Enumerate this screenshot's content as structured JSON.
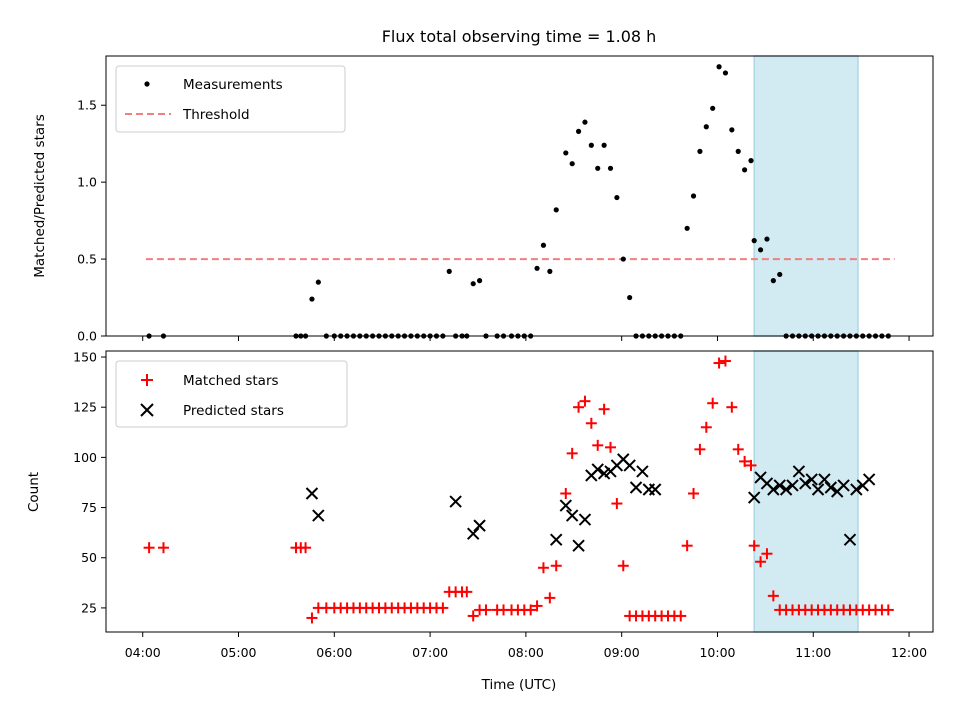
{
  "title": "Flux total observing time = 1.08 h",
  "colors": {
    "measurement": "#000000",
    "threshold": "#f08080",
    "matched": "#ff0000",
    "predicted": "#000000",
    "highlight": "#add8e6"
  },
  "chart_data": [
    {
      "type": "scatter",
      "ylabel": "Matched/Predicted stars",
      "ylim": [
        0,
        1.82
      ],
      "yticks": [
        0,
        0.5,
        1.0,
        1.5
      ],
      "ytick_labels": [
        "0.0",
        "0.5",
        "1.0",
        "1.5"
      ],
      "xlim": [
        "03:37",
        "12:15"
      ],
      "xticks": [
        "04:00",
        "05:00",
        "06:00",
        "07:00",
        "08:00",
        "09:00",
        "10:00",
        "11:00",
        "12:00"
      ],
      "highlight_span": [
        "10:23",
        "11:28"
      ],
      "legend": "top-left",
      "threshold": {
        "name": "Threshold",
        "y": 0.5,
        "x": [
          "04:02",
          "11:51"
        ],
        "style": "dashed"
      },
      "series": [
        {
          "name": "Measurements",
          "marker": "dot",
          "x": [
            "04:04",
            "04:13",
            "05:36",
            "05:39",
            "05:42",
            "05:46",
            "05:50",
            "05:55",
            "06:00",
            "06:04",
            "06:08",
            "06:12",
            "06:16",
            "06:20",
            "06:24",
            "06:28",
            "06:32",
            "06:36",
            "06:40",
            "06:44",
            "06:48",
            "06:52",
            "06:56",
            "07:00",
            "07:04",
            "07:08",
            "07:12",
            "07:16",
            "07:20",
            "07:23",
            "07:27",
            "07:31",
            "07:35",
            "07:42",
            "07:46",
            "07:51",
            "07:55",
            "07:59",
            "08:03",
            "08:07",
            "08:11",
            "08:15",
            "08:19",
            "08:25",
            "08:29",
            "08:33",
            "08:37",
            "08:41",
            "08:45",
            "08:49",
            "08:53",
            "08:57",
            "09:01",
            "09:05",
            "09:09",
            "09:13",
            "09:17",
            "09:21",
            "09:25",
            "09:29",
            "09:33",
            "09:37",
            "09:41",
            "09:45",
            "09:49",
            "09:53",
            "09:57",
            "10:01",
            "10:05",
            "10:09",
            "10:13",
            "10:17",
            "10:21",
            "10:23",
            "10:27",
            "10:31",
            "10:35",
            "10:39",
            "10:43",
            "10:47",
            "10:51",
            "10:55",
            "10:59",
            "11:03",
            "11:07",
            "11:11",
            "11:15",
            "11:19",
            "11:23",
            "11:27",
            "11:31",
            "11:35",
            "11:39",
            "11:43",
            "11:47"
          ],
          "y": [
            0,
            0,
            0,
            0,
            0,
            0.24,
            0.35,
            0,
            0,
            0,
            0,
            0,
            0,
            0,
            0,
            0,
            0,
            0,
            0,
            0,
            0,
            0,
            0,
            0,
            0,
            0,
            0.42,
            0,
            0,
            0,
            0.34,
            0.36,
            0,
            0,
            0,
            0,
            0,
            0,
            0,
            0.44,
            0.59,
            0.42,
            0.82,
            1.19,
            1.12,
            1.33,
            1.39,
            1.24,
            1.09,
            1.24,
            1.09,
            0.9,
            0.5,
            0.25,
            0,
            0,
            0,
            0,
            0,
            0,
            0,
            0,
            0.7,
            0.91,
            1.2,
            1.36,
            1.48,
            1.75,
            1.71,
            1.34,
            1.2,
            1.08,
            1.14,
            0.62,
            0.56,
            0.63,
            0.36,
            0.4,
            0,
            0,
            0,
            0,
            0,
            0,
            0,
            0,
            0,
            0,
            0,
            0,
            0,
            0,
            0,
            0,
            0
          ]
        }
      ]
    },
    {
      "type": "scatter",
      "ylabel": "Count",
      "xlabel": "Time (UTC)",
      "ylim": [
        13,
        153
      ],
      "yticks": [
        25,
        50,
        75,
        100,
        125,
        150
      ],
      "ytick_labels": [
        "25",
        "50",
        "75",
        "100",
        "125",
        "150"
      ],
      "xlim": [
        "03:37",
        "12:15"
      ],
      "xticks": [
        "04:00",
        "05:00",
        "06:00",
        "07:00",
        "08:00",
        "09:00",
        "10:00",
        "11:00",
        "12:00"
      ],
      "xtick_labels": [
        "04:00",
        "05:00",
        "06:00",
        "07:00",
        "08:00",
        "09:00",
        "10:00",
        "11:00",
        "12:00"
      ],
      "highlight_span": [
        "10:23",
        "11:28"
      ],
      "legend": "top-left",
      "series": [
        {
          "name": "Matched stars",
          "marker": "plus",
          "x": [
            "04:04",
            "04:13",
            "05:36",
            "05:39",
            "05:42",
            "05:46",
            "05:50",
            "05:55",
            "06:00",
            "06:04",
            "06:08",
            "06:12",
            "06:16",
            "06:20",
            "06:24",
            "06:28",
            "06:32",
            "06:36",
            "06:40",
            "06:44",
            "06:48",
            "06:52",
            "06:56",
            "07:00",
            "07:04",
            "07:08",
            "07:12",
            "07:16",
            "07:20",
            "07:23",
            "07:27",
            "07:31",
            "07:35",
            "07:42",
            "07:46",
            "07:51",
            "07:55",
            "07:59",
            "08:03",
            "08:07",
            "08:11",
            "08:15",
            "08:19",
            "08:25",
            "08:29",
            "08:33",
            "08:37",
            "08:41",
            "08:45",
            "08:49",
            "08:53",
            "08:57",
            "09:01",
            "09:05",
            "09:09",
            "09:13",
            "09:17",
            "09:21",
            "09:25",
            "09:29",
            "09:33",
            "09:37",
            "09:41",
            "09:45",
            "09:49",
            "09:53",
            "09:57",
            "10:01",
            "10:05",
            "10:09",
            "10:13",
            "10:17",
            "10:21",
            "10:23",
            "10:27",
            "10:31",
            "10:35",
            "10:39",
            "10:43",
            "10:47",
            "10:51",
            "10:55",
            "10:59",
            "11:03",
            "11:07",
            "11:11",
            "11:15",
            "11:19",
            "11:23",
            "11:27",
            "11:31",
            "11:35",
            "11:39",
            "11:43",
            "11:47"
          ],
          "y": [
            55,
            55,
            55,
            55,
            55,
            20,
            25,
            25,
            25,
            25,
            25,
            25,
            25,
            25,
            25,
            25,
            25,
            25,
            25,
            25,
            25,
            25,
            25,
            25,
            25,
            25,
            33,
            33,
            33,
            33,
            21,
            24,
            24,
            24,
            24,
            24,
            24,
            24,
            24,
            26,
            45,
            30,
            46,
            82,
            102,
            125,
            128,
            117,
            106,
            124,
            105,
            77,
            46,
            21,
            21,
            21,
            21,
            21,
            21,
            21,
            21,
            21,
            56,
            82,
            104,
            115,
            127,
            147,
            148,
            125,
            104,
            98,
            96,
            56,
            48,
            52,
            31,
            24,
            24,
            24,
            24,
            24,
            24,
            24,
            24,
            24,
            24,
            24,
            24,
            24,
            24,
            24,
            24,
            24,
            24
          ]
        },
        {
          "name": "Predicted stars",
          "marker": "x",
          "x": [
            "05:46",
            "05:50",
            "07:16",
            "07:27",
            "07:31",
            "08:19",
            "08:25",
            "08:29",
            "08:33",
            "08:37",
            "08:41",
            "08:45",
            "08:49",
            "08:53",
            "08:57",
            "09:01",
            "09:05",
            "09:09",
            "09:13",
            "09:17",
            "09:21",
            "10:23",
            "10:27",
            "10:31",
            "10:35",
            "10:39",
            "10:43",
            "10:47",
            "10:51",
            "10:55",
            "10:59",
            "11:03",
            "11:07",
            "11:11",
            "11:15",
            "11:19",
            "11:23",
            "11:27",
            "11:31",
            "11:35"
          ],
          "y": [
            82,
            71,
            78,
            62,
            66,
            59,
            76,
            71,
            56,
            69,
            91,
            94,
            92,
            93,
            96,
            99,
            96,
            85,
            93,
            84,
            84,
            80,
            90,
            87,
            84,
            86,
            84,
            86,
            93,
            87,
            89,
            84,
            89,
            85,
            83,
            86,
            59,
            84,
            86,
            89
          ]
        }
      ]
    }
  ]
}
